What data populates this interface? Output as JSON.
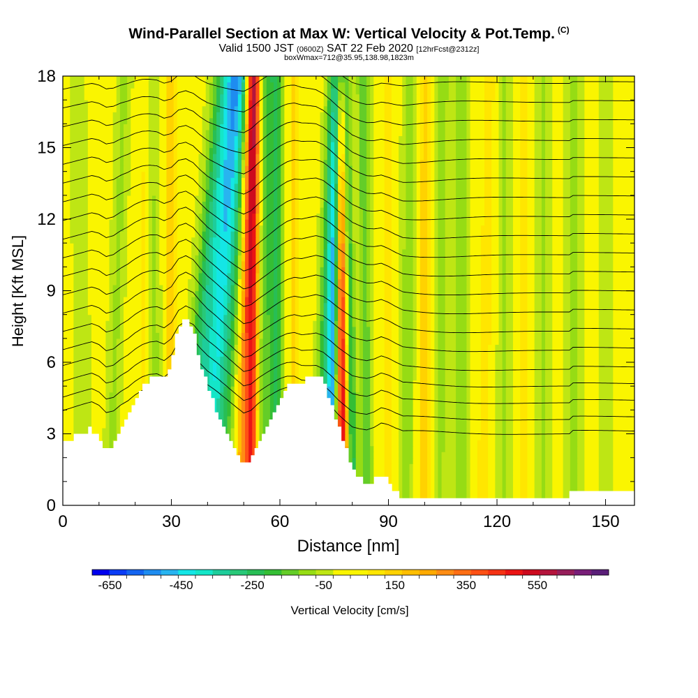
{
  "header": {
    "title": "Wind-Parallel Section at Max W: Vertical Velocity & Pot.Temp.",
    "title_mark": "(C)",
    "valid_prefix": "Valid 1500 JST",
    "valid_utc": "(0600Z)",
    "valid_date": "SAT 22 Feb 2020",
    "forecast": "[12hrFcst@2312z]",
    "box_info": "boxWmax=712@35.95,138.98,1823m"
  },
  "chart_data": {
    "type": "heatmap",
    "xlabel": "Distance [nm]",
    "ylabel": "Height [Kft MSL]",
    "xlim": [
      0,
      158
    ],
    "ylim": [
      0,
      18
    ],
    "x_ticks": [
      0,
      30,
      60,
      90,
      120,
      150
    ],
    "y_ticks": [
      0,
      3,
      6,
      9,
      12,
      15,
      18
    ],
    "background_field_value": 20,
    "terrain": {
      "x": [
        0,
        4,
        8,
        10,
        12,
        14,
        16,
        18,
        20,
        22,
        24,
        26,
        28,
        30,
        32,
        34,
        36,
        38,
        40,
        42,
        44,
        46,
        48,
        50,
        52,
        54,
        56,
        58,
        60,
        62,
        64,
        66,
        68,
        70,
        72,
        74,
        76,
        78,
        80,
        82,
        84,
        86,
        88,
        90,
        92,
        94,
        96,
        100,
        110,
        120,
        130,
        140,
        141,
        150,
        158
      ],
      "height": [
        2.6,
        2.9,
        3.2,
        2.9,
        2.3,
        2.5,
        3.1,
        3.6,
        4.3,
        4.9,
        5.3,
        5.5,
        5.2,
        5.9,
        7.5,
        8.0,
        7.4,
        6.1,
        5.0,
        4.2,
        3.4,
        2.7,
        2.1,
        1.6,
        1.9,
        2.6,
        3.2,
        3.8,
        4.4,
        4.9,
        5.2,
        5.1,
        5.3,
        5.5,
        5.2,
        4.4,
        3.4,
        2.5,
        1.6,
        1.2,
        0.9,
        1.0,
        1.3,
        1.0,
        0.6,
        0.3,
        0.3,
        0.3,
        0.3,
        0.3,
        0.3,
        0.3,
        0.6,
        0.6,
        0.6
      ]
    },
    "vertical_velocity_features": [
      {
        "x": 6,
        "slant": -2,
        "width": 2.2,
        "value": -60
      },
      {
        "x": 13,
        "slant": 4,
        "width": 2.0,
        "value": -80
      },
      {
        "x": 22,
        "slant": 1,
        "width": 1.6,
        "value": 120
      },
      {
        "x": 26,
        "slant": -2,
        "width": 2.0,
        "value": -90
      },
      {
        "x": 30,
        "slant": 0,
        "width": 1.6,
        "value": 180
      },
      {
        "x": 35,
        "slant": 10,
        "width": 3.2,
        "value": -290
      },
      {
        "x": 40,
        "slant": 8,
        "width": 2.6,
        "value": -360
      },
      {
        "x": 44,
        "slant": 6,
        "width": 2.2,
        "value": -160
      },
      {
        "x": 49,
        "slant": 3,
        "width": 1.6,
        "value": 240
      },
      {
        "x": 52,
        "slant": 1,
        "width": 1.8,
        "value": 480
      },
      {
        "x": 55,
        "slant": 1,
        "width": 1.8,
        "value": -160
      },
      {
        "x": 59,
        "slant": 0,
        "width": 2.2,
        "value": -220
      },
      {
        "x": 64,
        "slant": 0,
        "width": 1.8,
        "value": 150
      },
      {
        "x": 71,
        "slant": 4,
        "width": 2.0,
        "value": -220
      },
      {
        "x": 74,
        "slant": 2,
        "width": 1.6,
        "value": -520
      },
      {
        "x": 77.5,
        "slant": -1,
        "width": 1.9,
        "value": 560
      },
      {
        "x": 80,
        "slant": -2,
        "width": 1.4,
        "value": -330
      },
      {
        "x": 84,
        "slant": -1,
        "width": 1.8,
        "value": -150
      },
      {
        "x": 90,
        "slant": 0,
        "width": 2.0,
        "value": 100
      },
      {
        "x": 95,
        "slant": 1,
        "width": 2.2,
        "value": -100
      },
      {
        "x": 100,
        "slant": 0,
        "width": 2.0,
        "value": 160
      },
      {
        "x": 104,
        "slant": 1,
        "width": 2.0,
        "value": -90
      },
      {
        "x": 110,
        "slant": 0,
        "width": 2.4,
        "value": -100
      },
      {
        "x": 116,
        "slant": 2,
        "width": 2.0,
        "value": 120
      },
      {
        "x": 122,
        "slant": 0,
        "width": 2.0,
        "value": -80
      },
      {
        "x": 127,
        "slant": 0,
        "width": 1.6,
        "value": 110
      },
      {
        "x": 133,
        "slant": 0,
        "width": 2.2,
        "value": -80
      },
      {
        "x": 141,
        "slant": 0,
        "width": 2.4,
        "value": -90
      },
      {
        "x": 150,
        "slant": 0,
        "width": 2.0,
        "value": -70
      },
      {
        "x": 156,
        "slant": 0,
        "width": 1.8,
        "value": 60
      }
    ],
    "isentrope_base_heights": [
      3,
      3.6,
      4.3,
      5,
      5.7,
      6.5,
      7.3,
      8.1,
      8.9,
      9.7,
      10.5,
      11.3,
      12.1,
      12.9,
      13.7,
      14.5,
      15.3,
      16.1,
      16.9,
      17.7,
      18.5,
      19.3,
      20.1
    ],
    "colorbar": {
      "label": "Vertical Velocity [cm/s]",
      "tick_labels": [
        "-650",
        "-450",
        "-250",
        "-50",
        "150",
        "350",
        "550"
      ],
      "min": -700,
      "max": 750,
      "step": 50,
      "colors": [
        "#0000ee",
        "#0a3cf6",
        "#1464f0",
        "#1e8cf0",
        "#28b4f0",
        "#14e6e6",
        "#14e6c8",
        "#1ecd9b",
        "#28c878",
        "#28be55",
        "#34be34",
        "#64cd28",
        "#96dc14",
        "#bee614",
        "#faf500",
        "#faf500",
        "#ffe600",
        "#ffd200",
        "#ffbe00",
        "#ffaa00",
        "#ff8c14",
        "#ff6e14",
        "#ff5014",
        "#f53214",
        "#eb1414",
        "#cd0a1e",
        "#b4143c",
        "#961e5a",
        "#781e78",
        "#5a1e78"
      ]
    }
  }
}
